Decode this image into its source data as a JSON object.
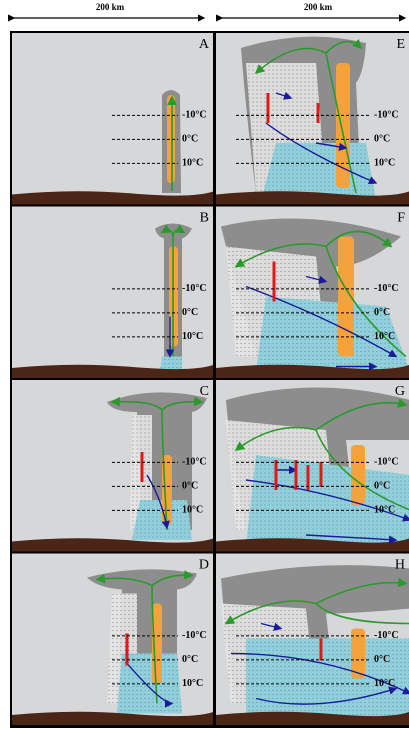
{
  "scale_bars": [
    {
      "label": "200 km"
    },
    {
      "label": "200 km"
    }
  ],
  "panels": [
    {
      "letter": "A",
      "temps": [
        "-10°C",
        "0°C",
        "10°C"
      ]
    },
    {
      "letter": "B",
      "temps": [
        "-10°C",
        "0°C",
        "10°C"
      ]
    },
    {
      "letter": "C",
      "temps": [
        "-10°C",
        "0°C",
        "10°C"
      ]
    },
    {
      "letter": "D",
      "temps": [
        "-10°C",
        "0°C",
        "10°C"
      ]
    },
    {
      "letter": "E",
      "temps": [
        "-10°C",
        "0°C",
        "10°C"
      ]
    },
    {
      "letter": "F",
      "temps": [
        "-10°C",
        "0°C",
        "10°C"
      ]
    },
    {
      "letter": "G",
      "temps": [
        "-10°C",
        "0°C",
        "10°C"
      ]
    },
    {
      "letter": "H",
      "temps": [
        "-10°C",
        "0°C",
        "10°C"
      ]
    }
  ]
}
